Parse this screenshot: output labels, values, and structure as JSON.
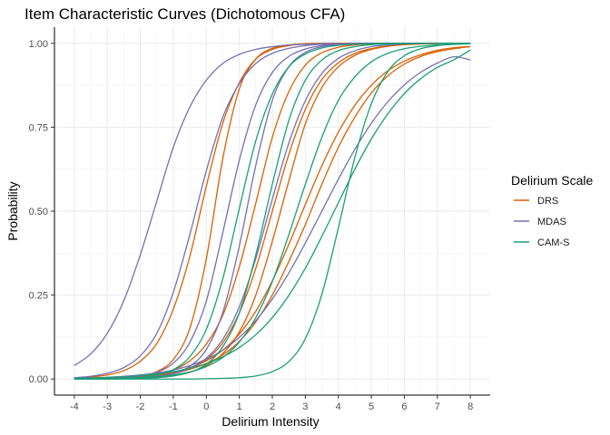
{
  "chart_data": {
    "type": "line",
    "title": "Item Characteristic Curves (Dichotomous CFA)",
    "xlabel": "Delirium Intensity",
    "ylabel": "Probability",
    "xlim": [
      -4,
      8
    ],
    "ylim": [
      0,
      1
    ],
    "xticks": [
      -4,
      -3,
      -2,
      -1,
      0,
      1,
      2,
      3,
      4,
      5,
      6,
      7,
      8
    ],
    "xtick_labels": [
      "-4",
      "-3",
      "-2",
      "-1",
      "0",
      "1",
      "2",
      "3",
      "4",
      "5",
      "6",
      "7",
      "8"
    ],
    "yticks": [
      0,
      0.25,
      0.5,
      0.75,
      1
    ],
    "ytick_labels": [
      "0.00",
      "0.25",
      "0.50",
      "0.75",
      "1.00"
    ],
    "grid": true,
    "legend": {
      "title": "Delirium Scale",
      "position": "right",
      "entries": [
        {
          "label": "DRS",
          "color": "#D95F02"
        },
        {
          "label": "MDAS",
          "color": "#7570B3"
        },
        {
          "label": "CAM-S",
          "color": "#1B9E77"
        }
      ]
    },
    "x": [
      -4,
      -3.5,
      -3,
      -2.5,
      -2,
      -1.5,
      -1,
      -0.5,
      0,
      0.5,
      1,
      1.5,
      2,
      2.5,
      3,
      3.5,
      4,
      4.5,
      5,
      5.5,
      6,
      6.5,
      7,
      7.5,
      8
    ],
    "series": [
      {
        "group": "DRS",
        "values": [
          0.003,
          0.006,
          0.012,
          0.025,
          0.053,
          0.106,
          0.208,
          0.365,
          0.574,
          0.762,
          0.883,
          0.953,
          0.982,
          0.993,
          0.998,
          0.999,
          1.0,
          1.0,
          1.0,
          1.0,
          1.0,
          1.0,
          1.0,
          1.0,
          1.0
        ]
      },
      {
        "group": "DRS",
        "values": [
          0.001,
          0.001,
          0.002,
          0.003,
          0.008,
          0.022,
          0.058,
          0.151,
          0.358,
          0.657,
          0.864,
          0.953,
          0.985,
          0.995,
          0.999,
          1.0,
          1.0,
          1.0,
          1.0,
          1.0,
          1.0,
          1.0,
          1.0,
          1.0,
          1.0
        ]
      },
      {
        "group": "DRS",
        "values": [
          0.0,
          0.001,
          0.002,
          0.004,
          0.008,
          0.014,
          0.027,
          0.054,
          0.104,
          0.19,
          0.334,
          0.524,
          0.72,
          0.856,
          0.935,
          0.972,
          0.988,
          0.995,
          0.998,
          0.999,
          1.0,
          1.0,
          1.0,
          1.0,
          1.0
        ]
      },
      {
        "group": "DRS",
        "values": [
          0.0,
          0.0,
          0.001,
          0.002,
          0.004,
          0.008,
          0.016,
          0.03,
          0.058,
          0.108,
          0.197,
          0.33,
          0.5,
          0.669,
          0.803,
          0.892,
          0.942,
          0.97,
          0.984,
          0.992,
          0.996,
          0.998,
          0.999,
          1.0,
          1.0
        ]
      },
      {
        "group": "DRS",
        "values": [
          0.0,
          0.0,
          0.0,
          0.001,
          0.002,
          0.005,
          0.01,
          0.02,
          0.04,
          0.076,
          0.14,
          0.25,
          0.41,
          0.59,
          0.76,
          0.868,
          0.93,
          0.964,
          0.982,
          0.991,
          0.996,
          0.998,
          0.999,
          1.0,
          1.0
        ]
      },
      {
        "group": "DRS",
        "values": [
          0.001,
          0.002,
          0.003,
          0.005,
          0.008,
          0.013,
          0.021,
          0.034,
          0.054,
          0.086,
          0.134,
          0.202,
          0.292,
          0.401,
          0.52,
          0.635,
          0.735,
          0.815,
          0.875,
          0.918,
          0.947,
          0.966,
          0.979,
          0.987,
          0.99
        ]
      },
      {
        "group": "DRS",
        "values": [
          0.001,
          0.002,
          0.003,
          0.004,
          0.007,
          0.011,
          0.018,
          0.029,
          0.046,
          0.072,
          0.112,
          0.17,
          0.25,
          0.35,
          0.46,
          0.58,
          0.69,
          0.78,
          0.852,
          0.903,
          0.938,
          0.961,
          0.975,
          0.984,
          0.99
        ]
      },
      {
        "group": "MDAS",
        "values": [
          0.04,
          0.075,
          0.136,
          0.233,
          0.37,
          0.53,
          0.69,
          0.81,
          0.89,
          0.94,
          0.967,
          0.982,
          0.99,
          0.995,
          0.997,
          0.999,
          0.999,
          1.0,
          1.0,
          1.0,
          1.0,
          1.0,
          1.0,
          1.0,
          1.0
        ]
      },
      {
        "group": "MDAS",
        "values": [
          0.004,
          0.008,
          0.017,
          0.034,
          0.069,
          0.136,
          0.258,
          0.43,
          0.62,
          0.78,
          0.88,
          0.94,
          0.97,
          0.985,
          0.993,
          0.997,
          0.998,
          0.999,
          1.0,
          1.0,
          1.0,
          1.0,
          1.0,
          1.0,
          1.0
        ]
      },
      {
        "group": "MDAS",
        "values": [
          0.001,
          0.001,
          0.002,
          0.004,
          0.009,
          0.02,
          0.047,
          0.109,
          0.232,
          0.436,
          0.652,
          0.817,
          0.913,
          0.961,
          0.983,
          0.993,
          0.997,
          0.999,
          1.0,
          1.0,
          1.0,
          1.0,
          1.0,
          1.0,
          1.0
        ]
      },
      {
        "group": "MDAS",
        "values": [
          0.0,
          0.0,
          0.001,
          0.002,
          0.004,
          0.008,
          0.016,
          0.032,
          0.062,
          0.118,
          0.215,
          0.359,
          0.536,
          0.703,
          0.829,
          0.91,
          0.955,
          0.978,
          0.99,
          0.995,
          0.998,
          0.999,
          1.0,
          1.0,
          1.0
        ]
      },
      {
        "group": "MDAS",
        "values": [
          0.002,
          0.003,
          0.005,
          0.008,
          0.012,
          0.018,
          0.027,
          0.04,
          0.059,
          0.086,
          0.124,
          0.174,
          0.238,
          0.316,
          0.405,
          0.5,
          0.595,
          0.684,
          0.762,
          0.826,
          0.876,
          0.914,
          0.941,
          0.96,
          0.95
        ]
      },
      {
        "group": "MDAS",
        "values": [
          0.0,
          0.0,
          0.001,
          0.001,
          0.003,
          0.007,
          0.016,
          0.038,
          0.088,
          0.198,
          0.396,
          0.637,
          0.83,
          0.93,
          0.973,
          0.99,
          0.996,
          0.999,
          1.0,
          1.0,
          1.0,
          1.0,
          1.0,
          1.0,
          1.0
        ]
      },
      {
        "group": "CAM-S",
        "values": [
          0.0,
          0.0,
          0.001,
          0.002,
          0.005,
          0.012,
          0.028,
          0.066,
          0.148,
          0.299,
          0.508,
          0.71,
          0.849,
          0.93,
          0.968,
          0.986,
          0.994,
          0.997,
          0.999,
          1.0,
          1.0,
          1.0,
          1.0,
          1.0,
          1.0
        ]
      },
      {
        "group": "CAM-S",
        "values": [
          0.0,
          0.0,
          0.0,
          0.001,
          0.002,
          0.004,
          0.009,
          0.02,
          0.044,
          0.096,
          0.197,
          0.37,
          0.58,
          0.77,
          0.89,
          0.95,
          0.978,
          0.99,
          0.996,
          0.998,
          0.999,
          1.0,
          1.0,
          1.0,
          1.0
        ]
      },
      {
        "group": "CAM-S",
        "values": [
          0.0,
          0.0,
          0.0,
          0.0,
          0.0,
          0.0,
          0.0,
          0.0,
          0.001,
          0.002,
          0.004,
          0.009,
          0.022,
          0.052,
          0.12,
          0.252,
          0.45,
          0.66,
          0.82,
          0.916,
          0.963,
          0.984,
          0.993,
          0.997,
          0.999
        ]
      },
      {
        "group": "CAM-S",
        "values": [
          0.0,
          0.001,
          0.001,
          0.002,
          0.004,
          0.007,
          0.012,
          0.021,
          0.037,
          0.064,
          0.11,
          0.183,
          0.29,
          0.43,
          0.58,
          0.72,
          0.83,
          0.9,
          0.945,
          0.97,
          0.984,
          0.991,
          0.995,
          0.997,
          0.999
        ]
      },
      {
        "group": "CAM-S",
        "values": [
          0.002,
          0.003,
          0.005,
          0.007,
          0.01,
          0.015,
          0.022,
          0.032,
          0.046,
          0.066,
          0.094,
          0.132,
          0.183,
          0.249,
          0.33,
          0.425,
          0.525,
          0.625,
          0.715,
          0.79,
          0.85,
          0.895,
          0.928,
          0.951,
          0.98
        ]
      }
    ]
  }
}
